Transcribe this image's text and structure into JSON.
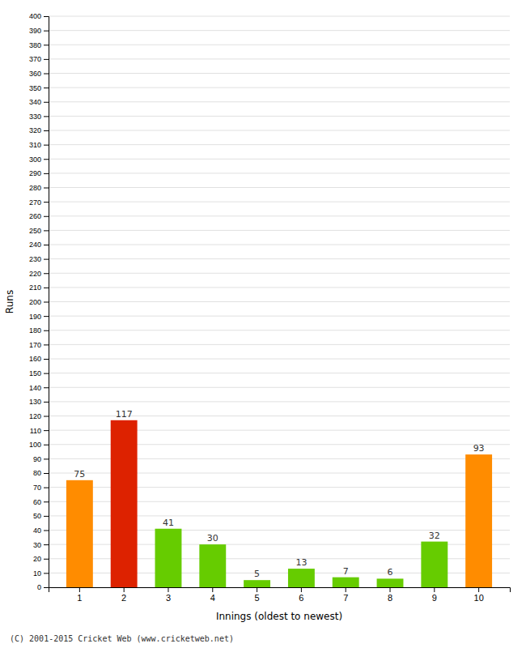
{
  "chart_data": {
    "type": "bar",
    "xlabel": "Innings (oldest to newest)",
    "ylabel": "Runs",
    "categories": [
      "1",
      "2",
      "3",
      "4",
      "5",
      "6",
      "7",
      "8",
      "9",
      "10"
    ],
    "values": [
      75,
      117,
      41,
      30,
      5,
      13,
      7,
      6,
      32,
      93
    ],
    "colors": [
      "#ff8c00",
      "#dd2200",
      "#66cc00",
      "#66cc00",
      "#66cc00",
      "#66cc00",
      "#66cc00",
      "#66cc00",
      "#66cc00",
      "#ff8c00"
    ],
    "ylim": [
      0,
      400
    ],
    "yticks": [
      0,
      10,
      20,
      30,
      40,
      50,
      60,
      70,
      80,
      90,
      100,
      110,
      120,
      130,
      140,
      150,
      160,
      170,
      180,
      190,
      200,
      210,
      220,
      230,
      240,
      250,
      260,
      270,
      280,
      290,
      300,
      310,
      320,
      330,
      340,
      350,
      360,
      370,
      380,
      390,
      400
    ],
    "grid": true,
    "data_labels": true,
    "annotations": [
      "(C) 2001-2015 Cricket Web (www.cricketweb.net)"
    ]
  }
}
